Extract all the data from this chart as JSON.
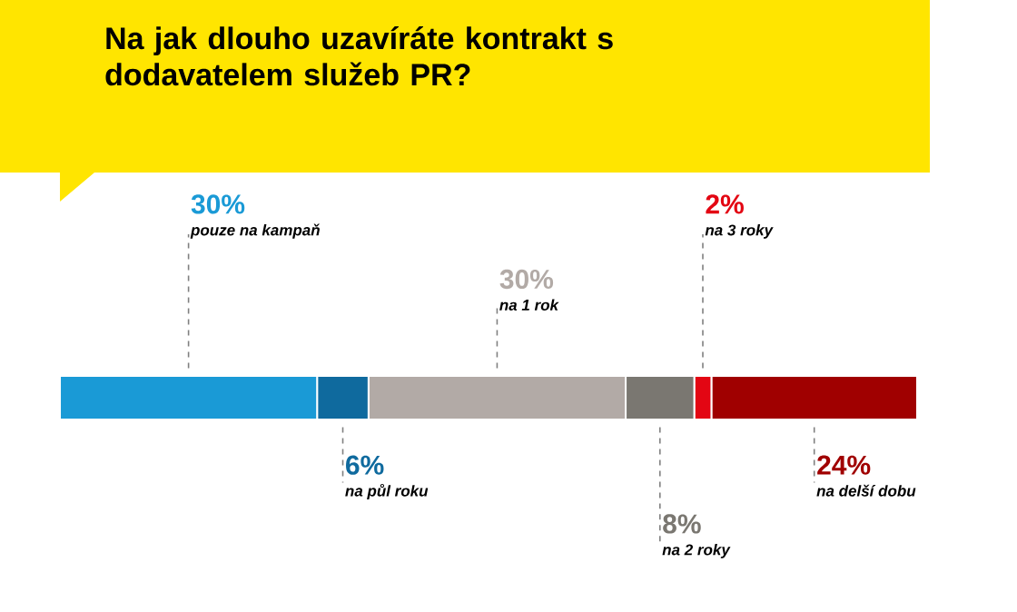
{
  "chart_data": {
    "type": "bar",
    "title": "Na jak dlouho uzavíráte kontrakt s dodavatelem služeb PR?",
    "orientation": "horizontal",
    "stacked": true,
    "categories": [
      null
    ],
    "series": [
      {
        "name": "pouze na kampaň",
        "color": "#1a9ad6",
        "values": [
          30
        ],
        "value_labels": [
          "30%"
        ]
      },
      {
        "name": "na půl roku",
        "color": "#0f6a9e",
        "values": [
          6
        ],
        "value_labels": [
          "6%"
        ]
      },
      {
        "name": "na 1 rok",
        "color": "#b2aaa6",
        "values": [
          30
        ],
        "value_labels": [
          "30%"
        ]
      },
      {
        "name": "na 2 roky",
        "color": "#7a7771",
        "values": [
          8
        ],
        "value_labels": [
          "8%"
        ]
      },
      {
        "name": "na 3 roky",
        "color": "#e30613",
        "values": [
          2
        ],
        "value_labels": [
          "2%"
        ]
      },
      {
        "name": "na delší dobu",
        "color": "#a00000",
        "values": [
          24
        ],
        "value_labels": [
          "24%"
        ]
      }
    ]
  }
}
